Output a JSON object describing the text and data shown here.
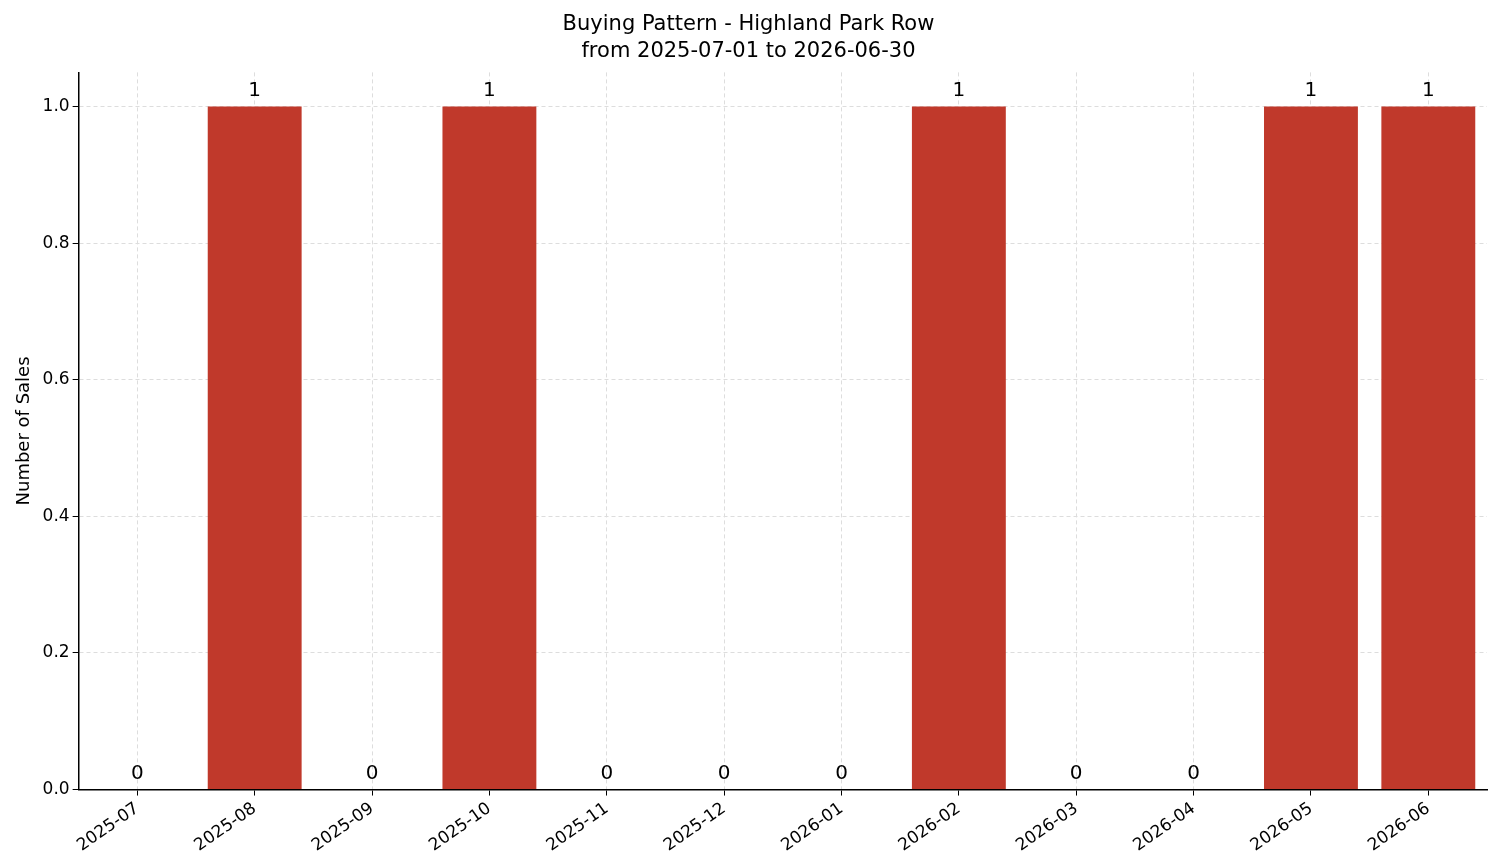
{
  "chart_data": {
    "type": "bar",
    "title": "Buying Pattern - Highland Park Row",
    "subtitle": "from 2025-07-01 to 2026-06-30",
    "ylabel": "Number of Sales",
    "categories": [
      "2025-07",
      "2025-08",
      "2025-09",
      "2025-10",
      "2025-11",
      "2025-12",
      "2026-01",
      "2026-02",
      "2026-03",
      "2026-04",
      "2026-05",
      "2026-06"
    ],
    "values": [
      0,
      1,
      0,
      1,
      0,
      0,
      0,
      1,
      0,
      0,
      1,
      1
    ],
    "color": "#c0392b",
    "ylim": [
      0,
      1.05
    ],
    "yticks": [
      {
        "value": 0,
        "label": "0.0"
      },
      {
        "value": 0.2,
        "label": "0.2"
      },
      {
        "value": 0.4,
        "label": "0.4"
      },
      {
        "value": 0.6,
        "label": "0.6"
      },
      {
        "value": 0.8,
        "label": "0.8"
      },
      {
        "value": 1,
        "label": "1.0"
      }
    ],
    "grid": true,
    "data_labels": true
  }
}
